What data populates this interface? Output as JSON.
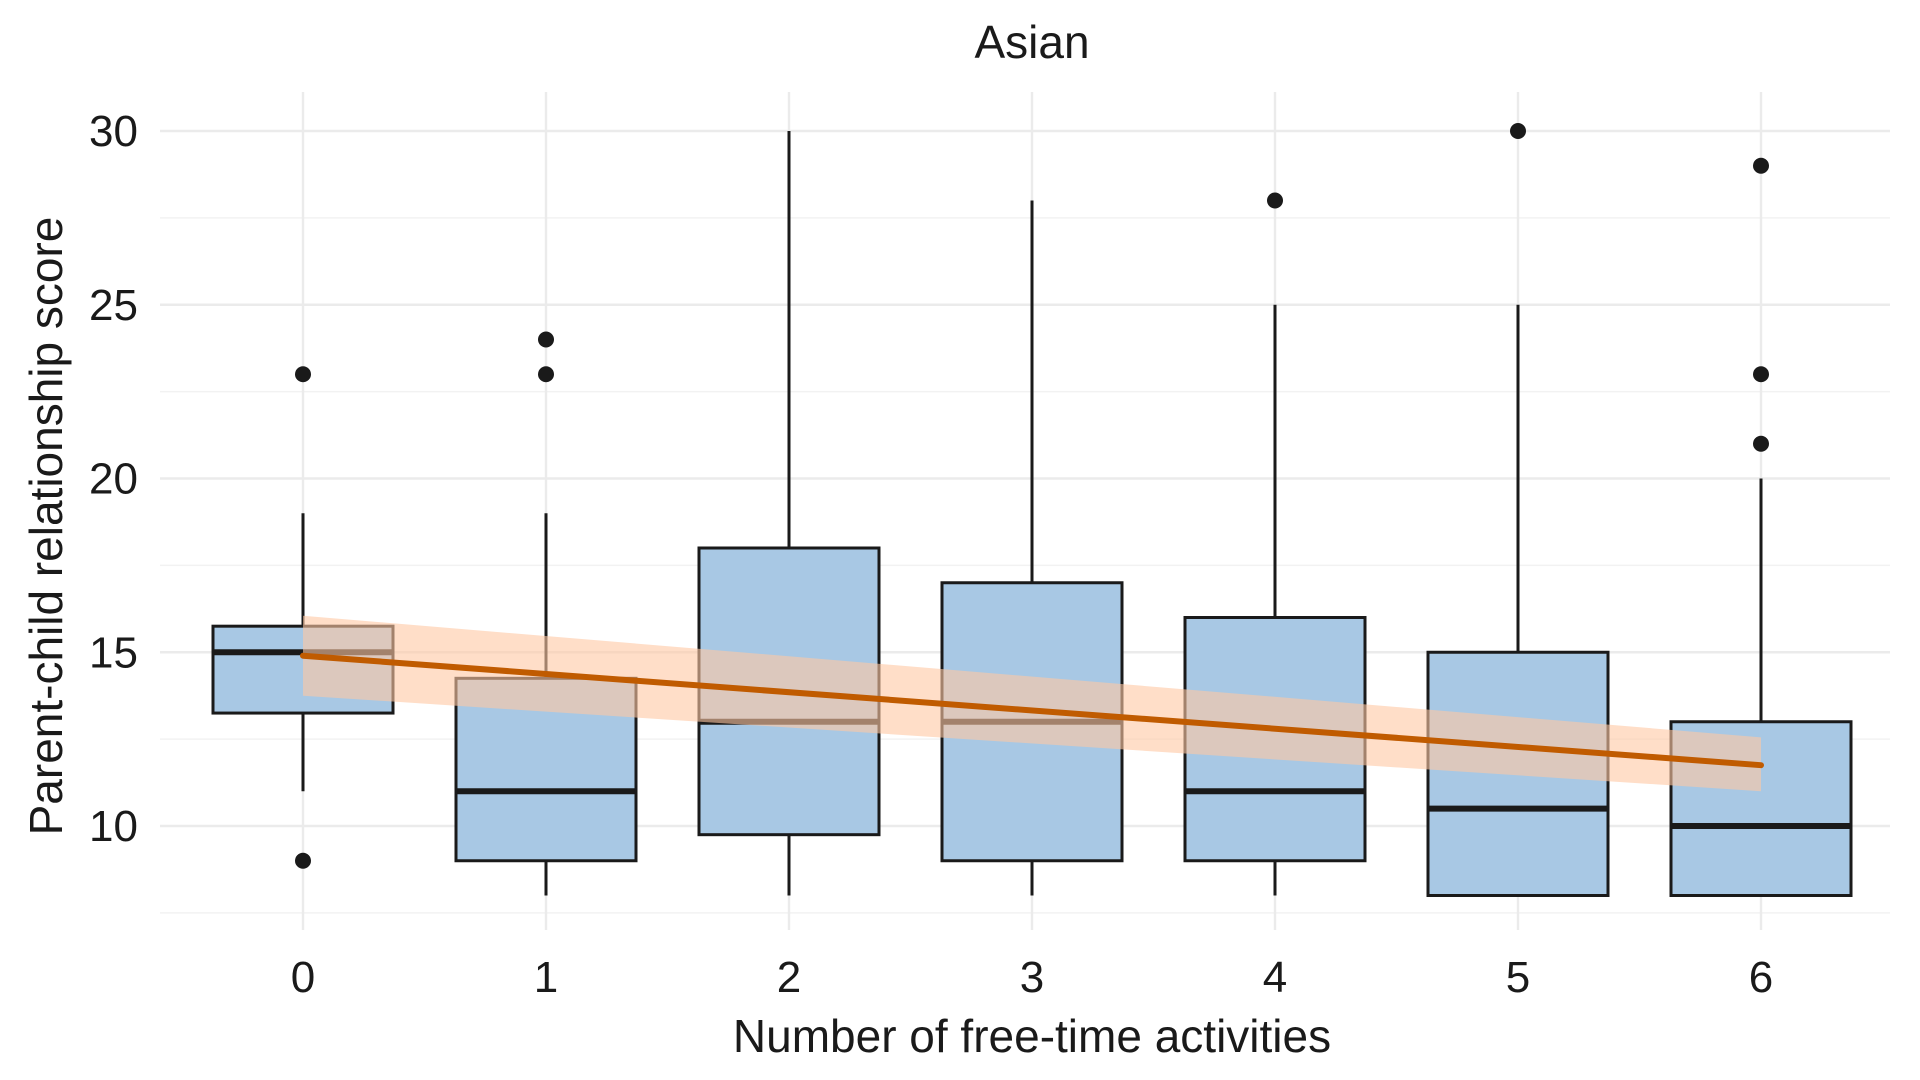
{
  "chart_data": {
    "type": "box",
    "title": "Asian",
    "xlabel": "Number of free-time activities",
    "ylabel": "Parent-child relationship score",
    "categories": [
      "0",
      "1",
      "2",
      "3",
      "4",
      "5",
      "6"
    ],
    "yticks": [
      "10",
      "15",
      "20",
      "25",
      "30"
    ],
    "ylim": [
      7.5,
      31.2
    ],
    "grid": true,
    "box_fill": "#a8c8e4",
    "box_stroke": "#1a1a1a",
    "trend_color": "#c05b00",
    "band_color": "#ffc8a4",
    "boxes": [
      {
        "category": "0",
        "whisker_low": 11,
        "q1": 13.25,
        "median": 15,
        "q3": 15.75,
        "whisker_high": 19,
        "outliers": [
          9,
          23
        ]
      },
      {
        "category": "1",
        "whisker_low": 8,
        "q1": 9,
        "median": 11,
        "q3": 14.25,
        "whisker_high": 19,
        "outliers": [
          23,
          24
        ]
      },
      {
        "category": "2",
        "whisker_low": 8,
        "q1": 9.75,
        "median": 13,
        "q3": 18,
        "whisker_high": 30,
        "outliers": []
      },
      {
        "category": "3",
        "whisker_low": 8,
        "q1": 9,
        "median": 13,
        "q3": 17,
        "whisker_high": 28,
        "outliers": []
      },
      {
        "category": "4",
        "whisker_low": 8,
        "q1": 9,
        "median": 11,
        "q3": 16,
        "whisker_high": 25,
        "outliers": [
          28
        ]
      },
      {
        "category": "5",
        "whisker_low": 8,
        "q1": 8,
        "median": 10.5,
        "q3": 15,
        "whisker_high": 25,
        "outliers": [
          30
        ]
      },
      {
        "category": "6",
        "whisker_low": 8,
        "q1": 8,
        "median": 10,
        "q3": 13,
        "whisker_high": 20,
        "outliers": [
          21,
          23,
          29
        ]
      }
    ],
    "trend": {
      "x": [
        0,
        6
      ],
      "y": [
        14.9,
        11.75
      ],
      "ci_low": [
        13.75,
        11.0
      ],
      "ci_high": [
        16.05,
        12.55
      ]
    }
  }
}
